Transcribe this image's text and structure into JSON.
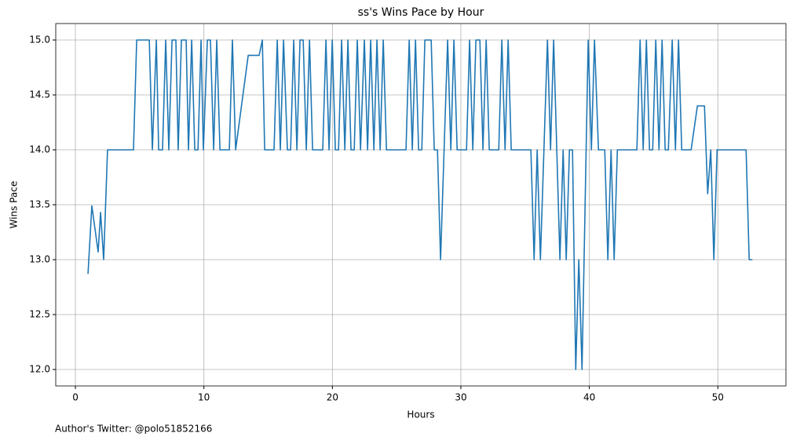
{
  "chart_data": {
    "type": "line",
    "title": "ss's Wins Pace by Hour",
    "x_label": "Hours",
    "y_label": "Wins Pace",
    "footer": "Author's Twitter: @polo51852166",
    "color": "#1f77b4",
    "grid": true,
    "xlim": [
      -1.53,
      55.3
    ],
    "ylim": [
      11.85,
      15.15
    ],
    "xticks": [
      0,
      10,
      20,
      30,
      40,
      50
    ],
    "yticks": [
      {
        "value": 12,
        "label": "12.0"
      },
      12.5,
      {
        "value": 13,
        "label": "13.0"
      },
      13.5,
      {
        "value": 14,
        "label": "14.0"
      },
      14.5,
      {
        "value": 15,
        "label": "15.0"
      }
    ],
    "x": [
      0.98,
      1.28,
      1.77,
      1.96,
      2.2,
      2.5,
      4.52,
      4.77,
      5.75,
      5.99,
      6.3,
      6.48,
      6.78,
      7.03,
      7.27,
      7.52,
      7.82,
      8.0,
      8.25,
      8.62,
      8.8,
      9.05,
      9.29,
      9.54,
      9.78,
      9.96,
      10.27,
      10.51,
      10.76,
      11.0,
      11.25,
      11.98,
      12.22,
      12.47,
      13.45,
      14.3,
      14.55,
      14.73,
      15.46,
      15.71,
      15.95,
      16.2,
      16.5,
      16.75,
      16.99,
      17.24,
      17.48,
      17.73,
      17.97,
      18.22,
      18.46,
      19.25,
      19.5,
      19.74,
      19.99,
      20.23,
      20.48,
      20.72,
      20.97,
      21.21,
      21.45,
      21.7,
      21.94,
      22.19,
      22.49,
      22.74,
      22.98,
      23.23,
      23.47,
      23.72,
      23.96,
      24.21,
      25.73,
      25.98,
      26.22,
      26.47,
      26.71,
      26.96,
      27.2,
      27.69,
      27.93,
      28.18,
      28.42,
      28.97,
      29.22,
      29.46,
      29.71,
      30.44,
      30.68,
      30.93,
      31.17,
      31.48,
      31.72,
      31.97,
      32.21,
      32.95,
      33.19,
      33.44,
      33.68,
      33.92,
      35.45,
      35.7,
      35.94,
      36.19,
      36.74,
      36.98,
      37.22,
      37.71,
      37.96,
      38.2,
      38.45,
      38.69,
      38.94,
      39.18,
      39.43,
      39.91,
      40.16,
      40.4,
      40.71,
      41.2,
      41.44,
      41.69,
      41.93,
      42.18,
      43.7,
      43.95,
      44.19,
      44.44,
      44.68,
      44.93,
      45.17,
      45.42,
      45.66,
      45.9,
      46.15,
      46.45,
      46.7,
      46.94,
      47.19,
      47.92,
      48.41,
      48.96,
      49.21,
      49.45,
      49.69,
      49.94,
      52.2,
      52.44,
      52.69
    ],
    "values": [
      12.87,
      13.49,
      13.07,
      13.43,
      13,
      14,
      14,
      15,
      15,
      14,
      15,
      14,
      14,
      15,
      14,
      15,
      15,
      14,
      15,
      15,
      14,
      15,
      14,
      14,
      15,
      14,
      15,
      15,
      14,
      15,
      14,
      14,
      15,
      14,
      14.86,
      14.86,
      15,
      14,
      14,
      15,
      14,
      15,
      14,
      14,
      15,
      14,
      15,
      15,
      14,
      15,
      14,
      14,
      15,
      14,
      15,
      14,
      14,
      15,
      14,
      15,
      14,
      14,
      15,
      14,
      15,
      14,
      15,
      14,
      15,
      14,
      15,
      14,
      14,
      15,
      14,
      15,
      14,
      14,
      15,
      15,
      14,
      14,
      13,
      15,
      14,
      15,
      14,
      14,
      15,
      14,
      15,
      15,
      14,
      15,
      14,
      14,
      15,
      14,
      15,
      14,
      14,
      13,
      14,
      13,
      15,
      14,
      15,
      13,
      14,
      13,
      14,
      14,
      12,
      13,
      12,
      15,
      14,
      15,
      14,
      14,
      13,
      14,
      13,
      14,
      14,
      15,
      14,
      15,
      14,
      14,
      15,
      14,
      15,
      14,
      14,
      15,
      14,
      15,
      14,
      14,
      14.4,
      14.4,
      13.6,
      14,
      13,
      14,
      14,
      13,
      13
    ]
  }
}
